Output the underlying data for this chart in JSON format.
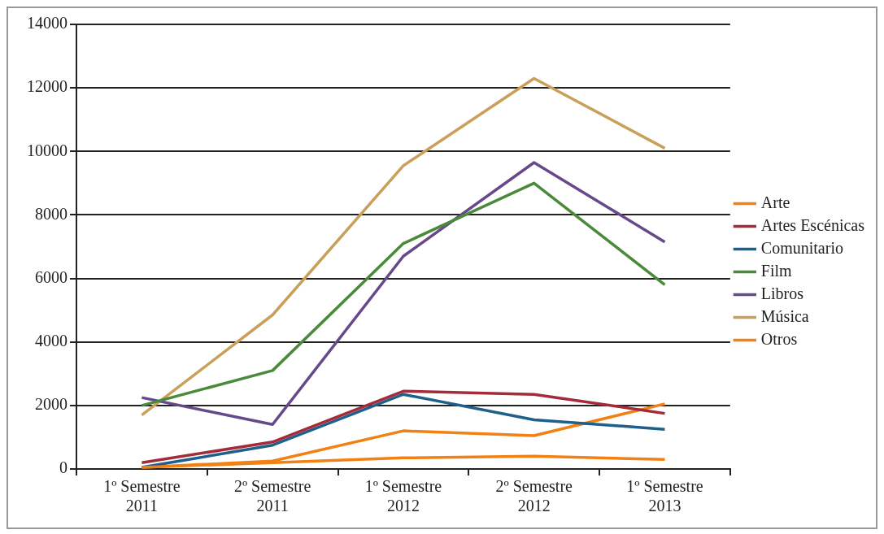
{
  "chart_data": {
    "type": "line",
    "categories": [
      "1º Semestre 2011",
      "2º Semestre 2011",
      "1º Semestre 2012",
      "2º Semestre 2012",
      "1º Semestre 2013"
    ],
    "series": [
      {
        "name": "Arte",
        "color": "#f28113",
        "values": [
          50,
          200,
          350,
          400,
          300
        ]
      },
      {
        "name": "Artes Escénicas",
        "color": "#a32b3b",
        "values": [
          200,
          850,
          2450,
          2350,
          1750
        ]
      },
      {
        "name": "Comunitario",
        "color": "#1f5f8b",
        "values": [
          50,
          750,
          2350,
          1550,
          1250
        ]
      },
      {
        "name": "Film",
        "color": "#4a8a3a",
        "values": [
          2000,
          3100,
          7100,
          9000,
          5800
        ]
      },
      {
        "name": "Libros",
        "color": "#65498a",
        "values": [
          2250,
          1400,
          6700,
          9650,
          7150
        ]
      },
      {
        "name": "Música",
        "color": "#c9a05a",
        "values": [
          1700,
          4850,
          9550,
          12300,
          10100
        ]
      },
      {
        "name": "Otros",
        "color": "#f28113",
        "values": [
          50,
          250,
          1200,
          1050,
          2050
        ]
      }
    ],
    "ylim": [
      0,
      14000
    ],
    "yticks": [
      0,
      2000,
      4000,
      6000,
      8000,
      10000,
      12000,
      14000
    ],
    "grid": "y",
    "legend": "right",
    "marker": "none",
    "line_style": "solid"
  }
}
